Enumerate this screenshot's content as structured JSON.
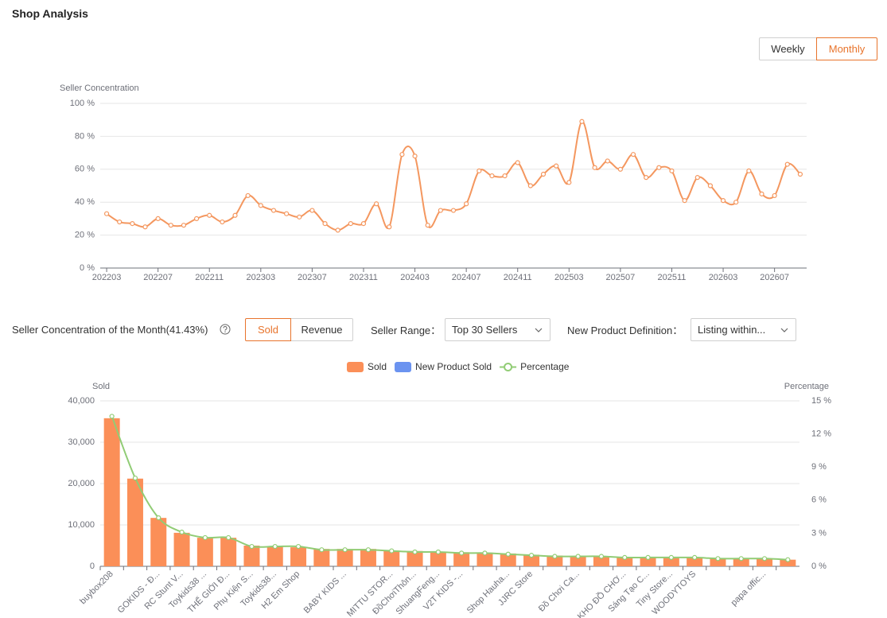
{
  "header": {
    "title": "Shop Analysis"
  },
  "period_toggle": {
    "options": [
      "Weekly",
      "Monthly"
    ],
    "active": 1
  },
  "controls": {
    "concentration_label": "Seller Concentration of the Month(41.43%)",
    "metric_options": [
      "Sold",
      "Revenue"
    ],
    "metric_active": 0,
    "seller_range_label": "Seller Range：",
    "seller_range_value": "Top 30 Sellers",
    "new_product_label": "New Product Definition：",
    "new_product_value": "Listing within..."
  },
  "chart_data": [
    {
      "type": "line",
      "y_label": "Seller Concentration",
      "color": "#f4975f",
      "grid": true,
      "categories": [
        "202203",
        null,
        null,
        null,
        "202207",
        null,
        null,
        null,
        "202211",
        null,
        null,
        null,
        "202303",
        null,
        null,
        null,
        "202307",
        null,
        null,
        null,
        "202311",
        null,
        null,
        null,
        "202403",
        null,
        null,
        null,
        "202407",
        null,
        null,
        null,
        "202411",
        null,
        null,
        null,
        "202503",
        null,
        null,
        null,
        "202507",
        null,
        null,
        null,
        "202511",
        null,
        null,
        null,
        "202603",
        null,
        null,
        null,
        "202607",
        null,
        null
      ],
      "values": [
        33,
        28,
        27,
        25,
        30,
        26,
        26,
        30,
        32,
        28,
        32,
        44,
        38,
        35,
        33,
        31,
        35,
        27,
        23,
        27,
        27,
        39,
        25,
        69,
        68,
        26,
        35,
        35,
        39,
        59,
        56,
        56,
        64,
        50,
        57,
        62,
        52,
        89,
        61,
        65,
        60,
        69,
        55,
        61,
        59,
        41,
        55,
        50,
        41,
        40,
        59,
        45,
        44,
        63,
        57
      ],
      "ylim": [
        0,
        100
      ],
      "yticks": [
        {
          "value": 0,
          "label": "0 %"
        },
        {
          "value": 20,
          "label": "20 %"
        },
        {
          "value": 40,
          "label": "40 %"
        },
        {
          "value": 60,
          "label": "60 %"
        },
        {
          "value": 80,
          "label": "80 %"
        },
        {
          "value": 100,
          "label": "100 %"
        }
      ]
    },
    {
      "type": "bar",
      "y_label": "Sold",
      "y2_label": "Percentage",
      "grid": true,
      "stacked": true,
      "categories": [
        "buybox208",
        null,
        "GOKIDS - Đ...",
        "RC Stunt V...",
        "Toykids38 ...",
        "THẾ GIỚI Đ...",
        "Phụ Kiện S...",
        "Toykids38...",
        "H2 Em Shop",
        null,
        "BABY KIDS ...",
        null,
        "MITTU STOR...",
        "ĐồChơiThôn...",
        "ShuangFeng...",
        "V2T KIDS -...",
        null,
        "Shop Hauha...",
        "JJRC Store",
        null,
        "Đồ Chơi Ca...",
        null,
        "KHO ĐỒ CHƠ...",
        "Sáng Tạo C...",
        "Tiny Store...",
        "WOODYTOYS",
        null,
        null,
        "papa offic...",
        null
      ],
      "series": [
        {
          "name": "Sold",
          "type": "bar",
          "color": "#fb8f58",
          "values": [
            35800,
            21200,
            11700,
            8100,
            6900,
            6900,
            5000,
            4800,
            4600,
            4200,
            4200,
            4200,
            3800,
            3700,
            3500,
            3400,
            3300,
            3100,
            2800,
            2600,
            2500,
            2400,
            2200,
            2100,
            2000,
            2000,
            1900,
            1900,
            1800,
            1600
          ]
        },
        {
          "name": "New Product Sold",
          "type": "bar",
          "color": "#6b93f0",
          "values": [
            0,
            0,
            0,
            0,
            0,
            0,
            0,
            0,
            0,
            0,
            0,
            0,
            0,
            0,
            0,
            0,
            0,
            0,
            0,
            0,
            0,
            0,
            0,
            0,
            0,
            0,
            0,
            0,
            0,
            0
          ]
        },
        {
          "name": "Percentage",
          "type": "line",
          "axis": "y2",
          "color": "#91cc75",
          "values": [
            13.6,
            8.0,
            4.4,
            3.1,
            2.6,
            2.6,
            1.8,
            1.8,
            1.8,
            1.5,
            1.5,
            1.5,
            1.4,
            1.3,
            1.3,
            1.2,
            1.2,
            1.1,
            1.0,
            0.9,
            0.9,
            0.9,
            0.8,
            0.8,
            0.8,
            0.8,
            0.7,
            0.7,
            0.7,
            0.6
          ]
        }
      ],
      "ylim": [
        0,
        40000
      ],
      "yticks": [
        0,
        {
          "value": 10000,
          "label": "10,000"
        },
        {
          "value": 20000,
          "label": "20,000"
        },
        {
          "value": 30000,
          "label": "30,000"
        },
        {
          "value": 40000,
          "label": "40,000"
        }
      ],
      "y2lim": [
        0,
        15
      ],
      "y2ticks": [
        {
          "value": 0,
          "label": "0 %"
        },
        {
          "value": 3,
          "label": "3 %"
        },
        {
          "value": 6,
          "label": "6 %"
        },
        {
          "value": 9,
          "label": "9 %"
        },
        {
          "value": 12,
          "label": "12 %"
        },
        {
          "value": 15,
          "label": "15 %"
        }
      ]
    }
  ]
}
